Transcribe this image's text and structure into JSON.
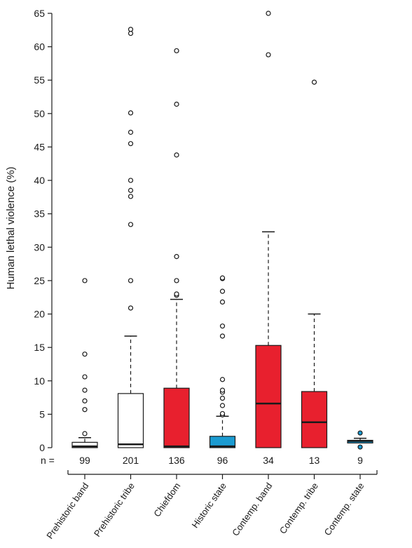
{
  "chart_data": {
    "type": "box",
    "title": "",
    "xlabel": "",
    "ylabel": "Human lethal violence (%)",
    "ylim": [
      0,
      65
    ],
    "yticks": [
      0,
      5,
      10,
      15,
      20,
      25,
      30,
      35,
      40,
      45,
      50,
      55,
      60,
      65
    ],
    "n_prefix": "n =",
    "grid": false,
    "colors": {
      "white": "#ffffff",
      "red": "#e8202e",
      "blue": "#1b9bd1",
      "stroke": "#1a1a1a"
    },
    "categories": [
      {
        "label": "Prehistoric band",
        "n": "99",
        "fill": "white",
        "q1": 0.0,
        "median": 0.2,
        "q3": 0.8,
        "whisker_low": 0.0,
        "whisker_high": 1.5,
        "outliers": [
          2.1,
          5.7,
          7.0,
          8.6,
          10.6,
          14.0,
          25.0
        ]
      },
      {
        "label": "Prehistoric tribe",
        "n": "201",
        "fill": "white",
        "q1": 0.0,
        "median": 0.5,
        "q3": 8.1,
        "whisker_low": 0.0,
        "whisker_high": 16.7,
        "outliers": [
          20.9,
          25.0,
          33.4,
          37.6,
          38.5,
          40.0,
          45.5,
          47.2,
          50.1,
          62.0,
          62.6
        ]
      },
      {
        "label": "Chiefdom",
        "n": "136",
        "fill": "red",
        "q1": 0.0,
        "median": 0.2,
        "q3": 8.9,
        "whisker_low": 0.0,
        "whisker_high": 22.2,
        "outliers": [
          22.8,
          23.0,
          25.0,
          28.6,
          43.8,
          51.4,
          59.4
        ]
      },
      {
        "label": "Historic state",
        "n": "96",
        "fill": "blue",
        "q1": 0.0,
        "median": 0.2,
        "q3": 1.7,
        "whisker_low": 0.0,
        "whisker_high": 4.7,
        "outliers": [
          4.9,
          5.1,
          6.3,
          7.4,
          8.3,
          8.6,
          10.2,
          16.7,
          18.2,
          21.8,
          23.4,
          25.3,
          25.4
        ]
      },
      {
        "label": "Contemp. band",
        "n": "34",
        "fill": "red",
        "q1": 0.0,
        "median": 6.6,
        "q3": 15.3,
        "whisker_low": 0.0,
        "whisker_high": 32.3,
        "outliers": [
          58.8,
          65.0
        ]
      },
      {
        "label": "Contemp. tribe",
        "n": "13",
        "fill": "red",
        "q1": 0.0,
        "median": 3.8,
        "q3": 8.4,
        "whisker_low": 0.0,
        "whisker_high": 20.0,
        "outliers": [
          54.7
        ]
      },
      {
        "label": "Contemp. state",
        "n": "9",
        "fill": "blue",
        "q1": 0.7,
        "median": 1.0,
        "q3": 1.1,
        "whisker_low": 0.7,
        "whisker_high": 1.4,
        "outliers": [
          0.1,
          2.2
        ],
        "outlier_fill": "blue"
      }
    ]
  }
}
